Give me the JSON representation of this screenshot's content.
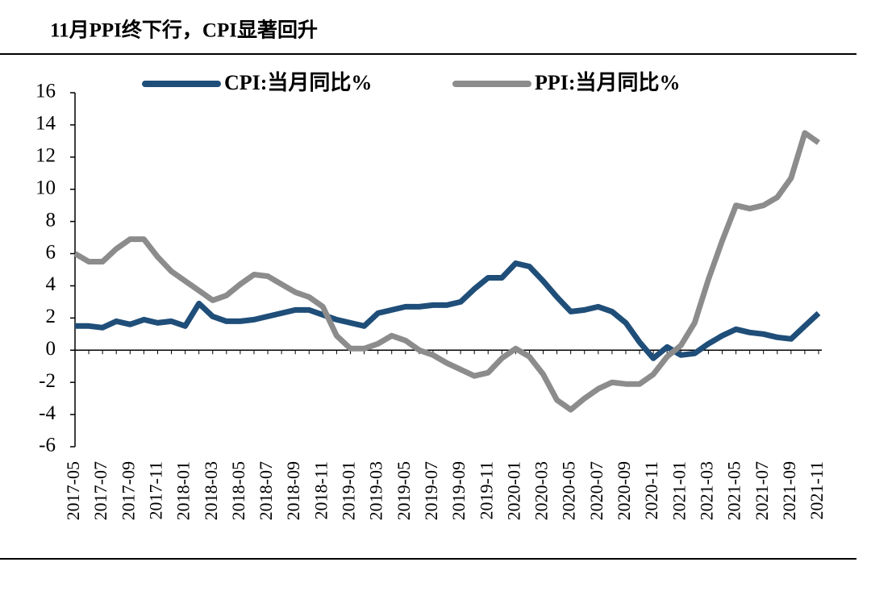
{
  "chart_data": {
    "type": "line",
    "title": "11月PPI终下行，CPI显著回升",
    "categories": [
      "2017-05",
      null,
      "2017-07",
      null,
      "2017-09",
      null,
      "2017-11",
      null,
      "2018-01",
      null,
      "2018-03",
      null,
      "2018-05",
      null,
      "2018-07",
      null,
      "2018-09",
      null,
      "2018-11",
      null,
      "2019-01",
      null,
      "2019-03",
      null,
      "2019-05",
      null,
      "2019-07",
      null,
      "2019-09",
      null,
      "2019-11",
      null,
      "2020-01",
      null,
      "2020-03",
      null,
      "2020-05",
      null,
      "2020-07",
      null,
      "2020-09",
      null,
      "2020-11",
      null,
      "2021-01",
      null,
      "2021-03",
      null,
      "2021-05",
      null,
      "2021-07",
      null,
      "2021-09",
      null,
      "2021-11"
    ],
    "series": [
      {
        "name": "CPI:当月同比%",
        "color": "#1f4e79",
        "values": [
          1.5,
          1.5,
          1.4,
          1.8,
          1.6,
          1.9,
          1.7,
          1.8,
          1.5,
          2.9,
          2.1,
          1.8,
          1.8,
          1.9,
          2.1,
          2.3,
          2.5,
          2.5,
          2.2,
          1.9,
          1.7,
          1.5,
          2.3,
          2.5,
          2.7,
          2.7,
          2.8,
          2.8,
          3.0,
          3.8,
          4.5,
          4.5,
          5.4,
          5.2,
          4.3,
          3.3,
          2.4,
          2.5,
          2.7,
          2.4,
          1.7,
          0.5,
          -0.5,
          0.2,
          -0.3,
          -0.2,
          0.4,
          0.9,
          1.3,
          1.1,
          1.0,
          0.8,
          0.7,
          1.5,
          2.3
        ]
      },
      {
        "name": "PPI:当月同比%",
        "color": "#8c8c8c",
        "values": [
          6.0,
          5.5,
          5.5,
          6.3,
          6.9,
          6.9,
          5.8,
          4.9,
          4.3,
          3.7,
          3.1,
          3.4,
          4.1,
          4.7,
          4.6,
          4.1,
          3.6,
          3.3,
          2.7,
          0.9,
          0.1,
          0.1,
          0.4,
          0.9,
          0.6,
          0.0,
          -0.3,
          -0.8,
          -1.2,
          -1.6,
          -1.4,
          -0.5,
          0.1,
          -0.4,
          -1.5,
          -3.1,
          -3.7,
          -3.0,
          -2.4,
          -2.0,
          -2.1,
          -2.1,
          -1.5,
          -0.4,
          0.3,
          1.7,
          4.4,
          6.8,
          9.0,
          8.8,
          9.0,
          9.5,
          10.7,
          13.5,
          12.9
        ]
      }
    ],
    "ylim": [
      -6,
      16
    ],
    "yticks": [
      -6,
      -4,
      -2,
      0,
      2,
      4,
      6,
      8,
      10,
      12,
      14,
      16
    ],
    "grid": false,
    "legend": "top"
  }
}
